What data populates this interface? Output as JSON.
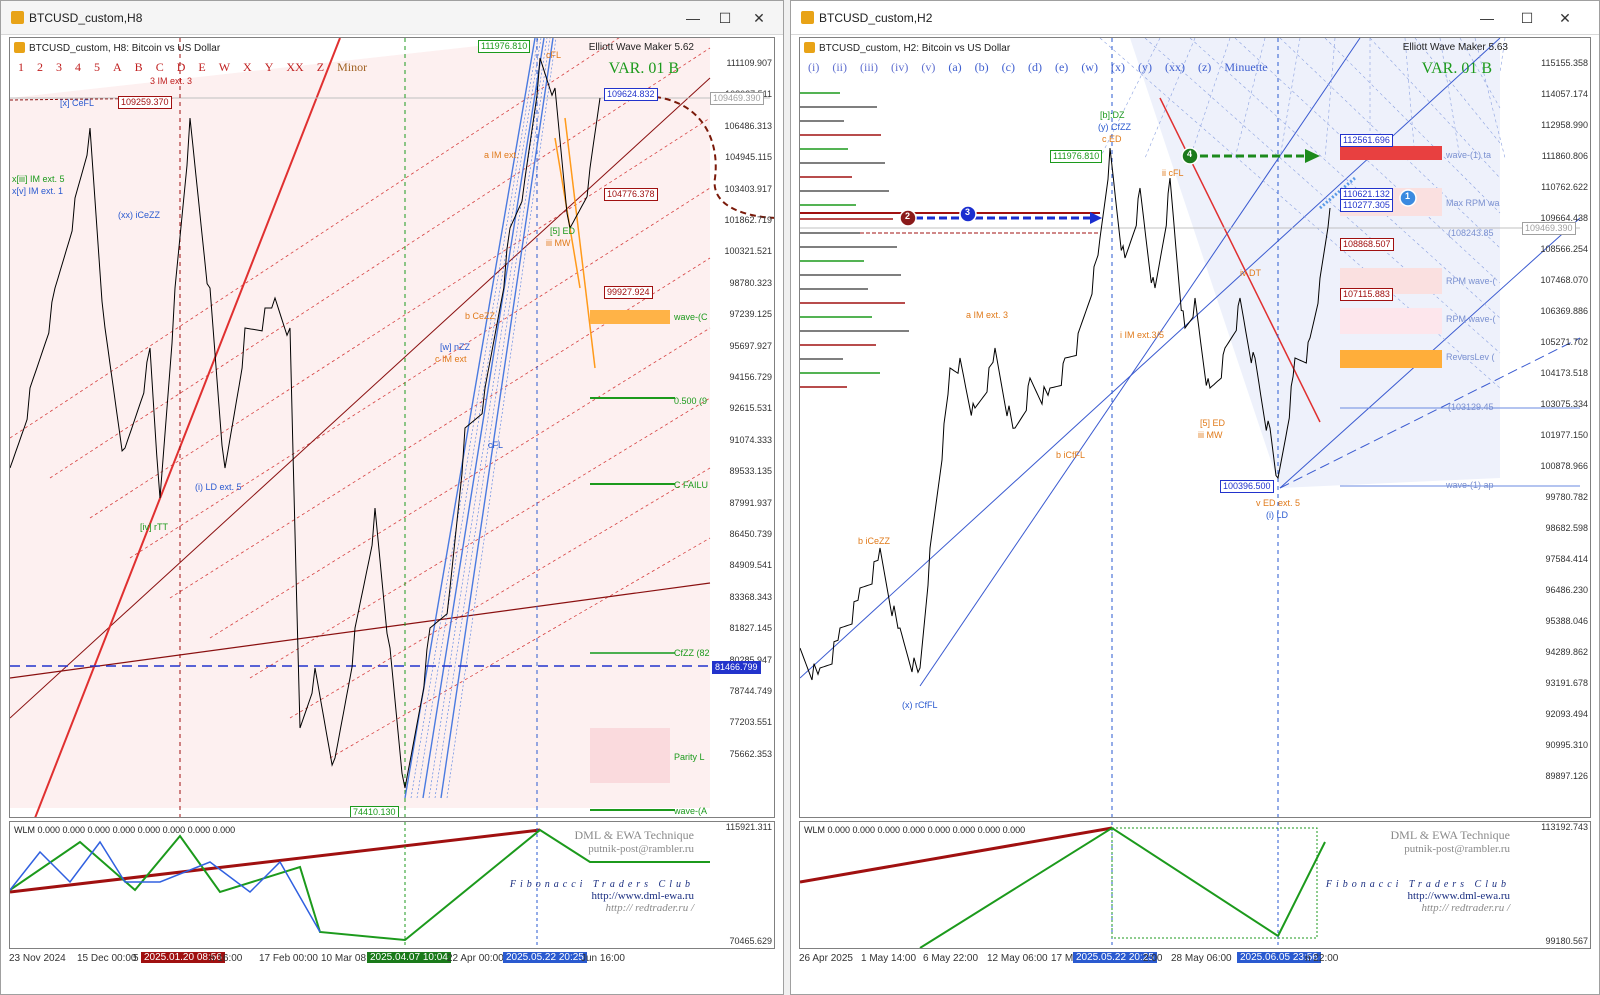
{
  "colors": {
    "bull": "#1c9a1c",
    "bear": "#a01010",
    "blue": "#2244cc",
    "orange": "#ff9a1a",
    "pink": "#f8d6d6"
  },
  "left": {
    "window_title": "BTCUSD_custom,H8",
    "chart_header": "BTCUSD_custom, H8:  Bitcoin vs US Dollar",
    "indicator": "Elliott Wave Maker 5.62",
    "variant": "VAR. 01 B",
    "wave_labels": [
      "1",
      "2",
      "3",
      "4",
      "5",
      "A",
      "B",
      "C",
      "D",
      "E",
      "W",
      "X",
      "Y",
      "XX",
      "Z",
      "Minor"
    ],
    "price_axis": [
      "111109.907",
      "108027.511",
      "106486.313",
      "104945.115",
      "103403.917",
      "101862.719",
      "100321.521",
      "98780.323",
      "97239.125",
      "95697.927",
      "94156.729",
      "92615.531",
      "91074.333",
      "89533.135",
      "87991.937",
      "86450.739",
      "84909.541",
      "83368.343",
      "81827.145",
      "80285.947",
      "78744.749",
      "77203.551",
      "75662.353"
    ],
    "price_boxes": {
      "top": "111976.810",
      "p1": "109259.370",
      "p2": "109624.832",
      "p3": "109469.390",
      "p4": "104776.378",
      "p5": "99927.924",
      "p6": "81466.799",
      "low": "74410.130"
    },
    "annotations": {
      "x_cefl": "[x] CeFL",
      "im3": "3 IM ext. 3",
      "iii_im5": "x[iii] IM ext. 5",
      "v_im1": "x[v] IM ext. 1",
      "xx_iceZZ": "(xx) iCeZZ",
      "i_ld5": "(i) LD ext. 5",
      "iv_rtt": "[iv] rTT",
      "a_im": "a IM ext.",
      "cefl": "cFL",
      "iii_mw": "iii MW",
      "ed": "[5] ED",
      "wave_c": "wave-(C",
      "fib500": "0.500 (9",
      "cfail": "C FAILU",
      "cfzz": "CfZZ (82",
      "parity": "Parity L",
      "wave_a": "wave-(A",
      "cfl": "cFL",
      "cezz": "b CeZZ",
      "c_im": "c IM ext",
      "vw_nzz": "[w] nZZ"
    },
    "time_axis": [
      "23 Nov 2024",
      "15 Dec 00:00",
      "5",
      "2025.01.20 08:56",
      "n 16:00",
      "17 Feb 00:00",
      "10 Mar 08:",
      "2025.04.07 10:04",
      "22 Apr 00:00",
      "2025.05.22 20:25",
      "Jun 16:00"
    ],
    "sub_header": "WLM 0.000 0.000 0.000 0.000 0.000 0.000 0.000 0.000",
    "sub_axis": [
      "115921.311",
      "70465.629"
    ]
  },
  "right": {
    "window_title": "BTCUSD_custom,H2",
    "chart_header": "BTCUSD_custom, H2:  Bitcoin vs US Dollar",
    "indicator": "Elliott Wave Maker 5.63",
    "variant": "VAR. 01 B",
    "wave_labels": [
      "(i)",
      "(ii)",
      "(iii)",
      "(iv)",
      "(v)",
      "(a)",
      "(b)",
      "(c)",
      "(d)",
      "(e)",
      "(w)",
      "(x)",
      "(y)",
      "(xx)",
      "(z)",
      "Minuette"
    ],
    "price_axis": [
      "115155.358",
      "114057.174",
      "112958.990",
      "111860.806",
      "110762.622",
      "109664.438",
      "108566.254",
      "107468.070",
      "106369.886",
      "105271.702",
      "104173.518",
      "103075.334",
      "101977.150",
      "100878.966",
      "99780.782",
      "98682.598",
      "97584.414",
      "96486.230",
      "95388.046",
      "94289.862",
      "93191.678",
      "92093.494",
      "90995.310",
      "89897.126"
    ],
    "price_boxes": {
      "top": "111976.810",
      "b1": "112561.696",
      "b2": "110621.132",
      "b3": "110277.305",
      "b4": "108868.507",
      "b5": "107115.883",
      "b6": "109469.390",
      "low": "100396.500"
    },
    "zones": {
      "z1": "wave-(1) ta",
      "z2": "Max RPM wa",
      "z3": "(108243.85",
      "z4": "RPM wave-(",
      "z5": "RPM wave-(",
      "z6": "ReversLev (",
      "z7": "(103129.45",
      "z8": "wave-(1) ap"
    },
    "annotations": {
      "bdz": "[b]:DZ",
      "ycfzz": "(y) CfZZ",
      "ced": "c ED",
      "icfl": "ii cFL",
      "aim3": "a IM ext. 3",
      "iim": "i IM ext.3/5",
      "bicfl": "b iCfFL",
      "ved": "v ED ext. 5",
      "ild": "(i) LD",
      "iiimw": "iii MW",
      "ed5": "[5] ED",
      "xrcffl": "(x) rCfFL",
      "biceZZ": "b iCeZZ",
      "ivdt": "iv DT"
    },
    "markers": [
      "1",
      "2",
      "3",
      "4"
    ],
    "time_axis": [
      "26 Apr 2025",
      "1 May 14:00",
      "6 May 22:00",
      "12 May 06:00",
      "17 Ma",
      "2025.05.22 20:25",
      "2:00",
      "28 May 06:00",
      "2025.06.05 23:56",
      "n 22:00"
    ],
    "sub_header": "WLM 0.000 0.000 0.000 0.000 0.000 0.000 0.000 0.000",
    "sub_axis": [
      "113192.743",
      "99180.567"
    ]
  },
  "credits": {
    "line1": "DML & EWA Technique",
    "line2": "putnik-post@rambler.ru",
    "line3": "Fibonacci Traders Club",
    "line4": "http://www.dml-ewa.ru",
    "line5": "http:// redtrader.ru /"
  },
  "controls": {
    "min": "—",
    "max": "☐",
    "close": "✕"
  }
}
